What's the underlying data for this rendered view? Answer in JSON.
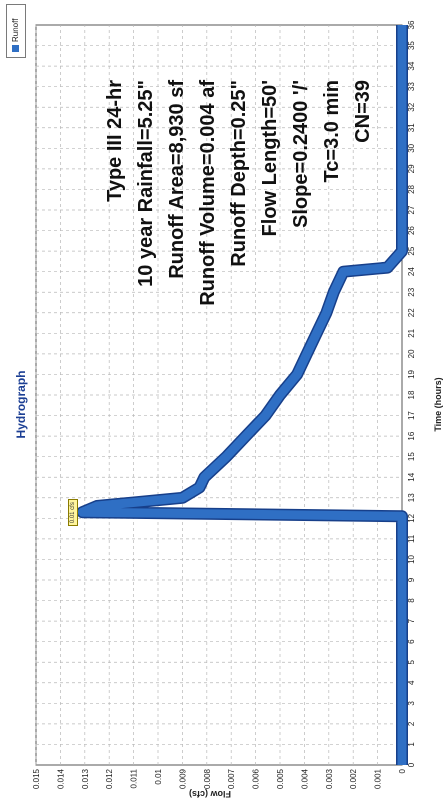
{
  "chart_data": {
    "type": "area",
    "title": "Hydrograph",
    "xlabel": "Time (hours)",
    "ylabel": "Flow (cfs)",
    "xlim": [
      0,
      36
    ],
    "ylim": [
      0,
      0.015
    ],
    "xticks": [
      0,
      1,
      2,
      3,
      4,
      5,
      6,
      7,
      8,
      9,
      10,
      11,
      12,
      13,
      14,
      15,
      16,
      17,
      18,
      19,
      20,
      21,
      22,
      23,
      24,
      25,
      26,
      27,
      28,
      29,
      30,
      31,
      32,
      33,
      34,
      35,
      36
    ],
    "yticks": [
      0,
      0.001,
      0.002,
      0.003,
      0.004,
      0.005,
      0.006,
      0.007,
      0.008,
      0.009,
      0.01,
      0.011,
      0.012,
      0.013,
      0.014,
      0.015
    ],
    "grid": true,
    "legend_position": "top-right",
    "series": [
      {
        "name": "Runoff",
        "color": "#2f6fc4",
        "x": [
          0,
          12.1,
          12.3,
          12.6,
          13.0,
          13.5,
          14.0,
          15.0,
          16.0,
          17.0,
          18.0,
          19.0,
          20.0,
          21.0,
          22.0,
          23.0,
          24.0,
          24.2,
          25.0,
          36.0
        ],
        "y": [
          0,
          0,
          0.0131,
          0.0125,
          0.009,
          0.0083,
          0.0081,
          0.0072,
          0.0064,
          0.0056,
          0.005,
          0.0043,
          0.0039,
          0.0035,
          0.0031,
          0.0028,
          0.0024,
          0.0006,
          0,
          0
        ]
      }
    ],
    "peak_label": "0.01 cfs",
    "annotations": [
      "Type III 24-hr",
      "10 year Rainfall=5.25\"",
      "Runoff Area=8,930 sf",
      "Runoff Volume=0.004 af",
      "Runoff Depth=0.25\"",
      "Flow Length=50'",
      "Slope=0.2400 '/'",
      "Tc=3.0 min",
      "CN=39"
    ]
  }
}
